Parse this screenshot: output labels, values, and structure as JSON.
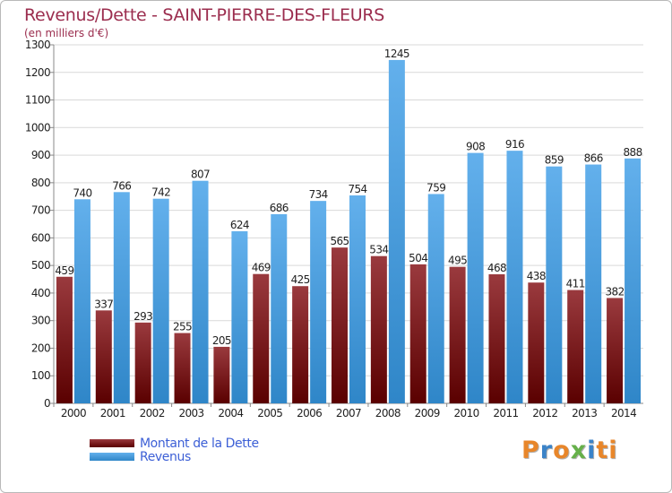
{
  "header": {
    "title": "Revenus/Dette - SAINT-PIERRE-DES-FLEURS",
    "subtitle": "(en milliers d'€)"
  },
  "legend": {
    "debt_label": "Montant de la Dette",
    "revenue_label": "Revenus"
  },
  "logo": {
    "text": "Proxiti",
    "letter_colors": [
      "#e8862a",
      "#3b83c8",
      "#e8862a",
      "#66b04a",
      "#3b83c8",
      "#e8862a",
      "#e8862a"
    ]
  },
  "colors": {
    "debt_top": "#9a3a3e",
    "debt_bottom": "#5a0000",
    "revenue_top": "#63b0ec",
    "revenue_bottom": "#2f86c8",
    "grid": "#d9d9d9",
    "title": "#9b2d4e",
    "legend_text": "#3c5fd6"
  },
  "chart_data": {
    "type": "bar",
    "title": "Revenus/Dette - SAINT-PIERRE-DES-FLEURS",
    "ylabel": "(en milliers d'€)",
    "xlabel": "",
    "ylim": [
      0,
      1300
    ],
    "yticks": [
      0,
      100,
      200,
      300,
      400,
      500,
      600,
      700,
      800,
      900,
      1000,
      1100,
      1200,
      1300
    ],
    "grid": true,
    "legend_position": "bottom-left",
    "categories": [
      "2000",
      "2001",
      "2002",
      "2003",
      "2004",
      "2005",
      "2006",
      "2007",
      "2008",
      "2009",
      "2010",
      "2011",
      "2012",
      "2013",
      "2014"
    ],
    "series": [
      {
        "name": "Montant de la Dette",
        "values": [
          459,
          337,
          293,
          255,
          205,
          469,
          425,
          565,
          534,
          504,
          495,
          468,
          438,
          411,
          382
        ]
      },
      {
        "name": "Revenus",
        "values": [
          740,
          766,
          742,
          807,
          624,
          686,
          734,
          754,
          1245,
          759,
          908,
          916,
          859,
          866,
          888
        ]
      }
    ]
  }
}
